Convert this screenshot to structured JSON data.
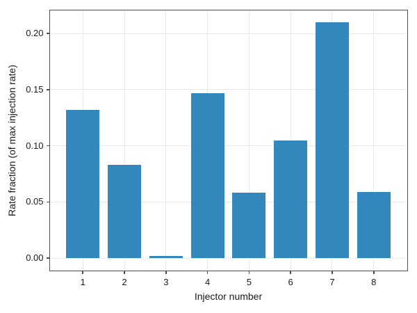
{
  "chart_data": {
    "type": "bar",
    "title": "",
    "xlabel": "Injector number",
    "ylabel": "Rate fraction (of max injection rate)",
    "categories": [
      "1",
      "2",
      "3",
      "4",
      "5",
      "6",
      "7",
      "8"
    ],
    "values": [
      0.132,
      0.083,
      0.002,
      0.147,
      0.058,
      0.105,
      0.21,
      0.059
    ],
    "yticks": [
      0.0,
      0.05,
      0.1,
      0.15,
      0.2
    ],
    "ytick_labels": [
      "0.00",
      "0.05",
      "0.10",
      "0.15",
      "0.20"
    ],
    "ylim": [
      -0.0105,
      0.2205
    ],
    "xlim": [
      -0.79,
      7.79
    ],
    "bar_width": 0.8,
    "grid": true,
    "legend_visible": false,
    "colors": {
      "bar": "#3288bd",
      "grid": "#e8e8e8",
      "spine": "#4d4d4d",
      "text": "#1a1a1a",
      "background": "#ffffff"
    }
  }
}
